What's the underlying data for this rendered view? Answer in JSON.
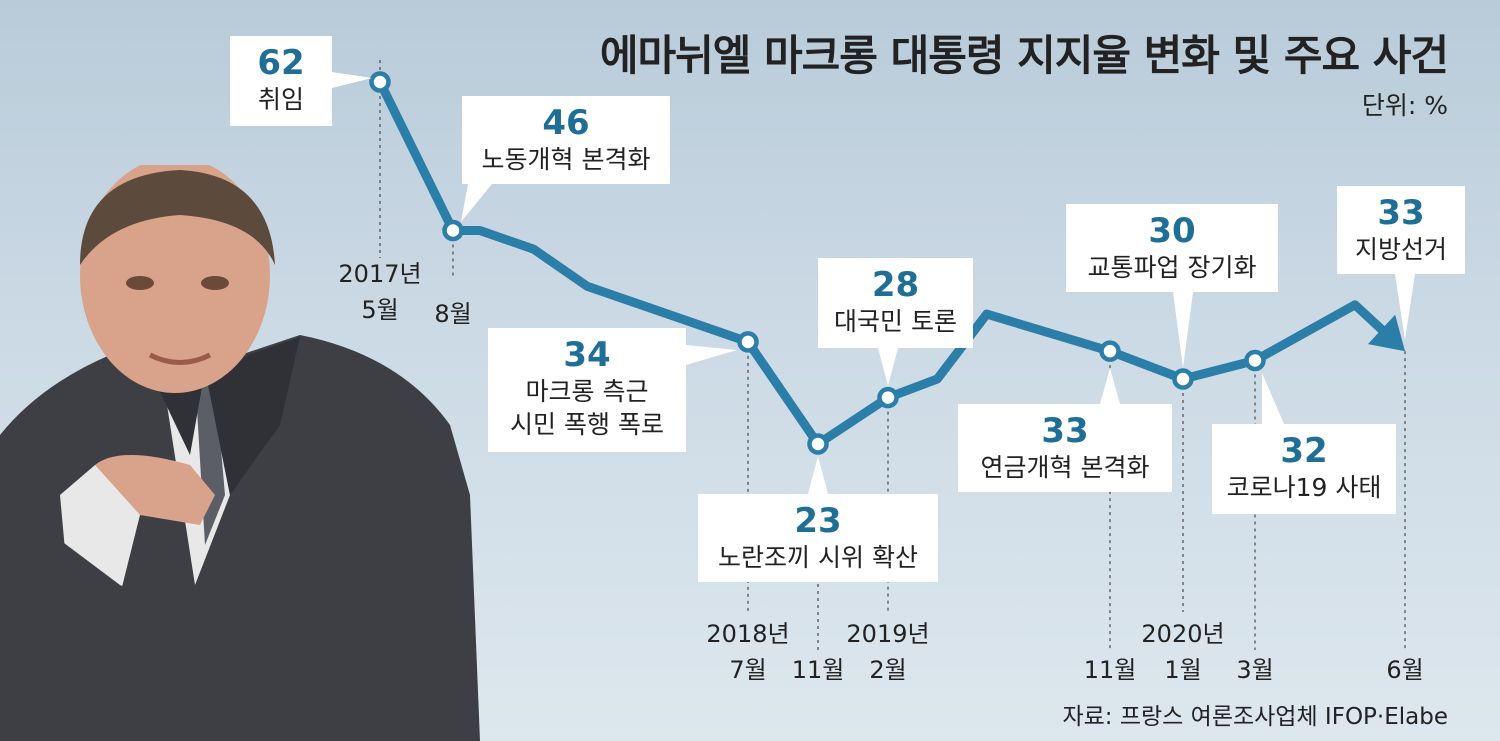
{
  "title": "에마뉘엘 마크롱 대통령 지지율 변화 및 주요 사건",
  "unit": "단위: %",
  "source": "자료: 프랑스 여론조사업체 IFOP·Elabe",
  "colors": {
    "line": "#2a7ea8",
    "value": "#1f6e96",
    "box": "#ffffff"
  },
  "chart_data": {
    "type": "line",
    "ylim": [
      20,
      65
    ],
    "series": [
      {
        "values": [
          {
            "date": "2017-05",
            "value": 62
          },
          {
            "date": "2017-08",
            "value": 46
          },
          {
            "date": "2017-09",
            "value": 46
          },
          {
            "date": "2017-11",
            "value": 44
          },
          {
            "date": "2018-01",
            "value": 40
          },
          {
            "date": "2018-07",
            "value": 34
          },
          {
            "date": "2018-11",
            "value": 23
          },
          {
            "date": "2019-02",
            "value": 28
          },
          {
            "date": "2019-04",
            "value": 30
          },
          {
            "date": "2019-06",
            "value": 37
          },
          {
            "date": "2019-11",
            "value": 33
          },
          {
            "date": "2020-01",
            "value": 30
          },
          {
            "date": "2020-03",
            "value": 32
          },
          {
            "date": "2020-05",
            "value": 38
          },
          {
            "date": "2020-06",
            "value": 33
          }
        ]
      }
    ],
    "annotations": [
      {
        "date": "2017-05",
        "value": "62",
        "label": [
          "취임"
        ]
      },
      {
        "date": "2017-08",
        "value": "46",
        "label": [
          "노동개혁 본격화"
        ]
      },
      {
        "date": "2018-07",
        "value": "34",
        "label": [
          "마크롱 측근",
          "시민 폭행 폭로"
        ]
      },
      {
        "date": "2018-11",
        "value": "23",
        "label": [
          "노란조끼 시위 확산"
        ]
      },
      {
        "date": "2019-02",
        "value": "28",
        "label": [
          "대국민 토론"
        ]
      },
      {
        "date": "2019-11",
        "value": "33",
        "label": [
          "연금개혁 본격화"
        ]
      },
      {
        "date": "2020-01",
        "value": "30",
        "label": [
          "교통파업 장기화"
        ]
      },
      {
        "date": "2020-03",
        "value": "32",
        "label": [
          "코로나19 사태"
        ]
      },
      {
        "date": "2020-06",
        "value": "33",
        "label": [
          "지방선거"
        ]
      }
    ],
    "date_labels": [
      {
        "date": "2017-05",
        "lines": [
          "2017년",
          "5월"
        ]
      },
      {
        "date": "2017-08",
        "lines": [
          "8월"
        ]
      },
      {
        "date": "2018-07",
        "lines": [
          "2018년",
          "7월"
        ]
      },
      {
        "date": "2018-11",
        "lines": [
          "11월"
        ]
      },
      {
        "date": "2019-02",
        "lines": [
          "2019년",
          "2월"
        ]
      },
      {
        "date": "2019-11",
        "lines": [
          "11월"
        ]
      },
      {
        "date": "2020-01",
        "lines": [
          "2020년",
          "1월"
        ]
      },
      {
        "date": "2020-03",
        "lines": [
          "3월"
        ]
      },
      {
        "date": "2020-06",
        "lines": [
          "6월"
        ]
      }
    ]
  }
}
